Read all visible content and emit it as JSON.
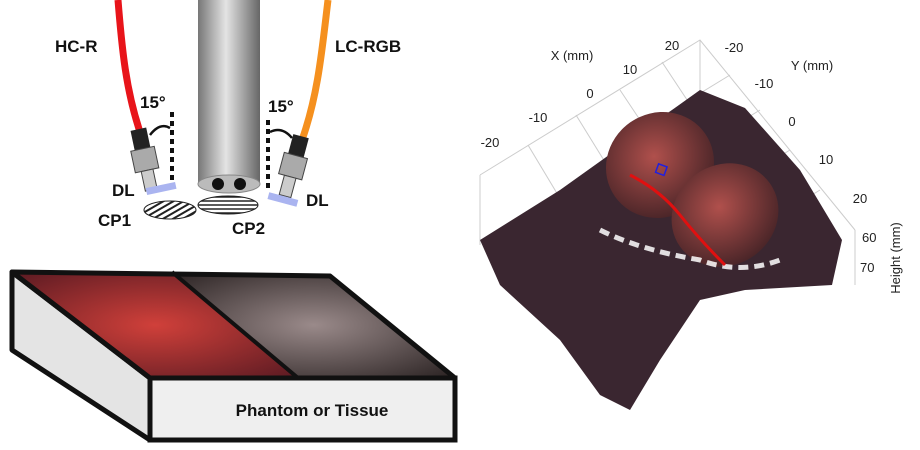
{
  "left_panel": {
    "fiber_left": "HC-R",
    "fiber_right": "LC-RGB",
    "angle_left": "15°",
    "angle_right": "15°",
    "diffuser_left": "DL",
    "diffuser_right": "DL",
    "polarizer_left": "CP1",
    "polarizer_right": "CP2",
    "sample": "Phantom or Tissue"
  },
  "right_panel": {
    "x_label": "X (mm)",
    "y_label": "Y (mm)",
    "z_label": "Height (mm)",
    "x_ticks": [
      20,
      10,
      0,
      -10,
      -20
    ],
    "y_ticks": [
      -20,
      -10,
      0,
      10,
      20
    ],
    "z_ticks": [
      60,
      70
    ]
  }
}
